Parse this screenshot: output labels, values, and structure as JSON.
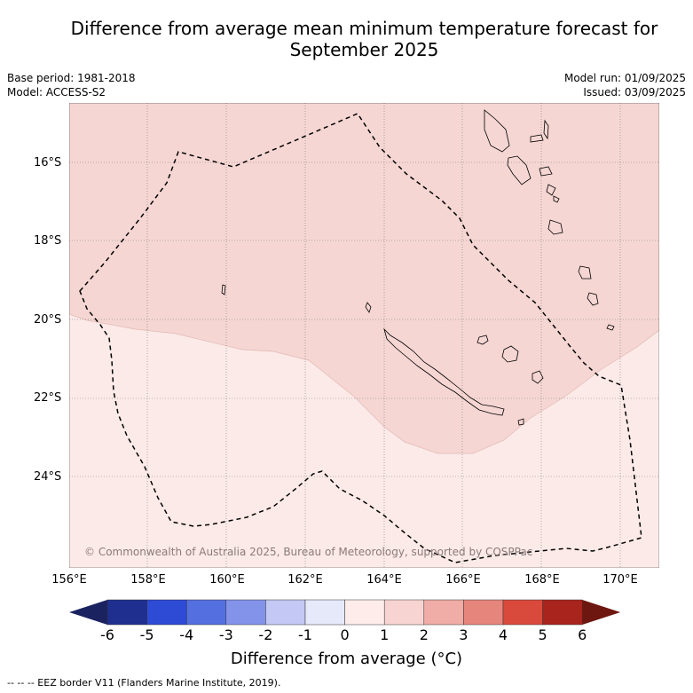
{
  "title": "Difference from average mean minimum temperature forecast for September 2025",
  "meta": {
    "base_period": "Base period: 1981-2018",
    "model": "Model: ACCESS-S2",
    "model_run": "Model run: 01/09/2025",
    "issued": "Issued: 03/09/2025"
  },
  "axes": {
    "lat_labels": [
      "16°S",
      "18°S",
      "20°S",
      "22°S",
      "24°S"
    ],
    "lon_labels": [
      "156°E",
      "158°E",
      "160°E",
      "162°E",
      "164°E",
      "166°E",
      "168°E",
      "170°E"
    ]
  },
  "colorbar": {
    "title": "Difference from average (°C)",
    "ticks": [
      "-6",
      "-5",
      "-4",
      "-3",
      "-2",
      "-1",
      "0",
      "1",
      "2",
      "3",
      "4",
      "5",
      "6"
    ],
    "colors": [
      "#1f2f8f",
      "#2e4bd6",
      "#5470e0",
      "#8493ea",
      "#c3c9f4",
      "#e6e9fa",
      "#fdecea",
      "#f7d4d1",
      "#f0aca6",
      "#e6857c",
      "#d94a3c",
      "#a9241c"
    ],
    "low_cap_color": "#1a2260",
    "high_cap_color": "#6e1610"
  },
  "legend_fill_colors": {
    "zero_to_one": "#fbeae8",
    "one_to_two": "#f5d6d3"
  },
  "copyright": "© Commonwealth of Australia 2025, Bureau of Meteorology, supported by COSPPac",
  "footer": "-- -- -- EEZ border V11 (Flanders Marine Institute, 2019)."
}
